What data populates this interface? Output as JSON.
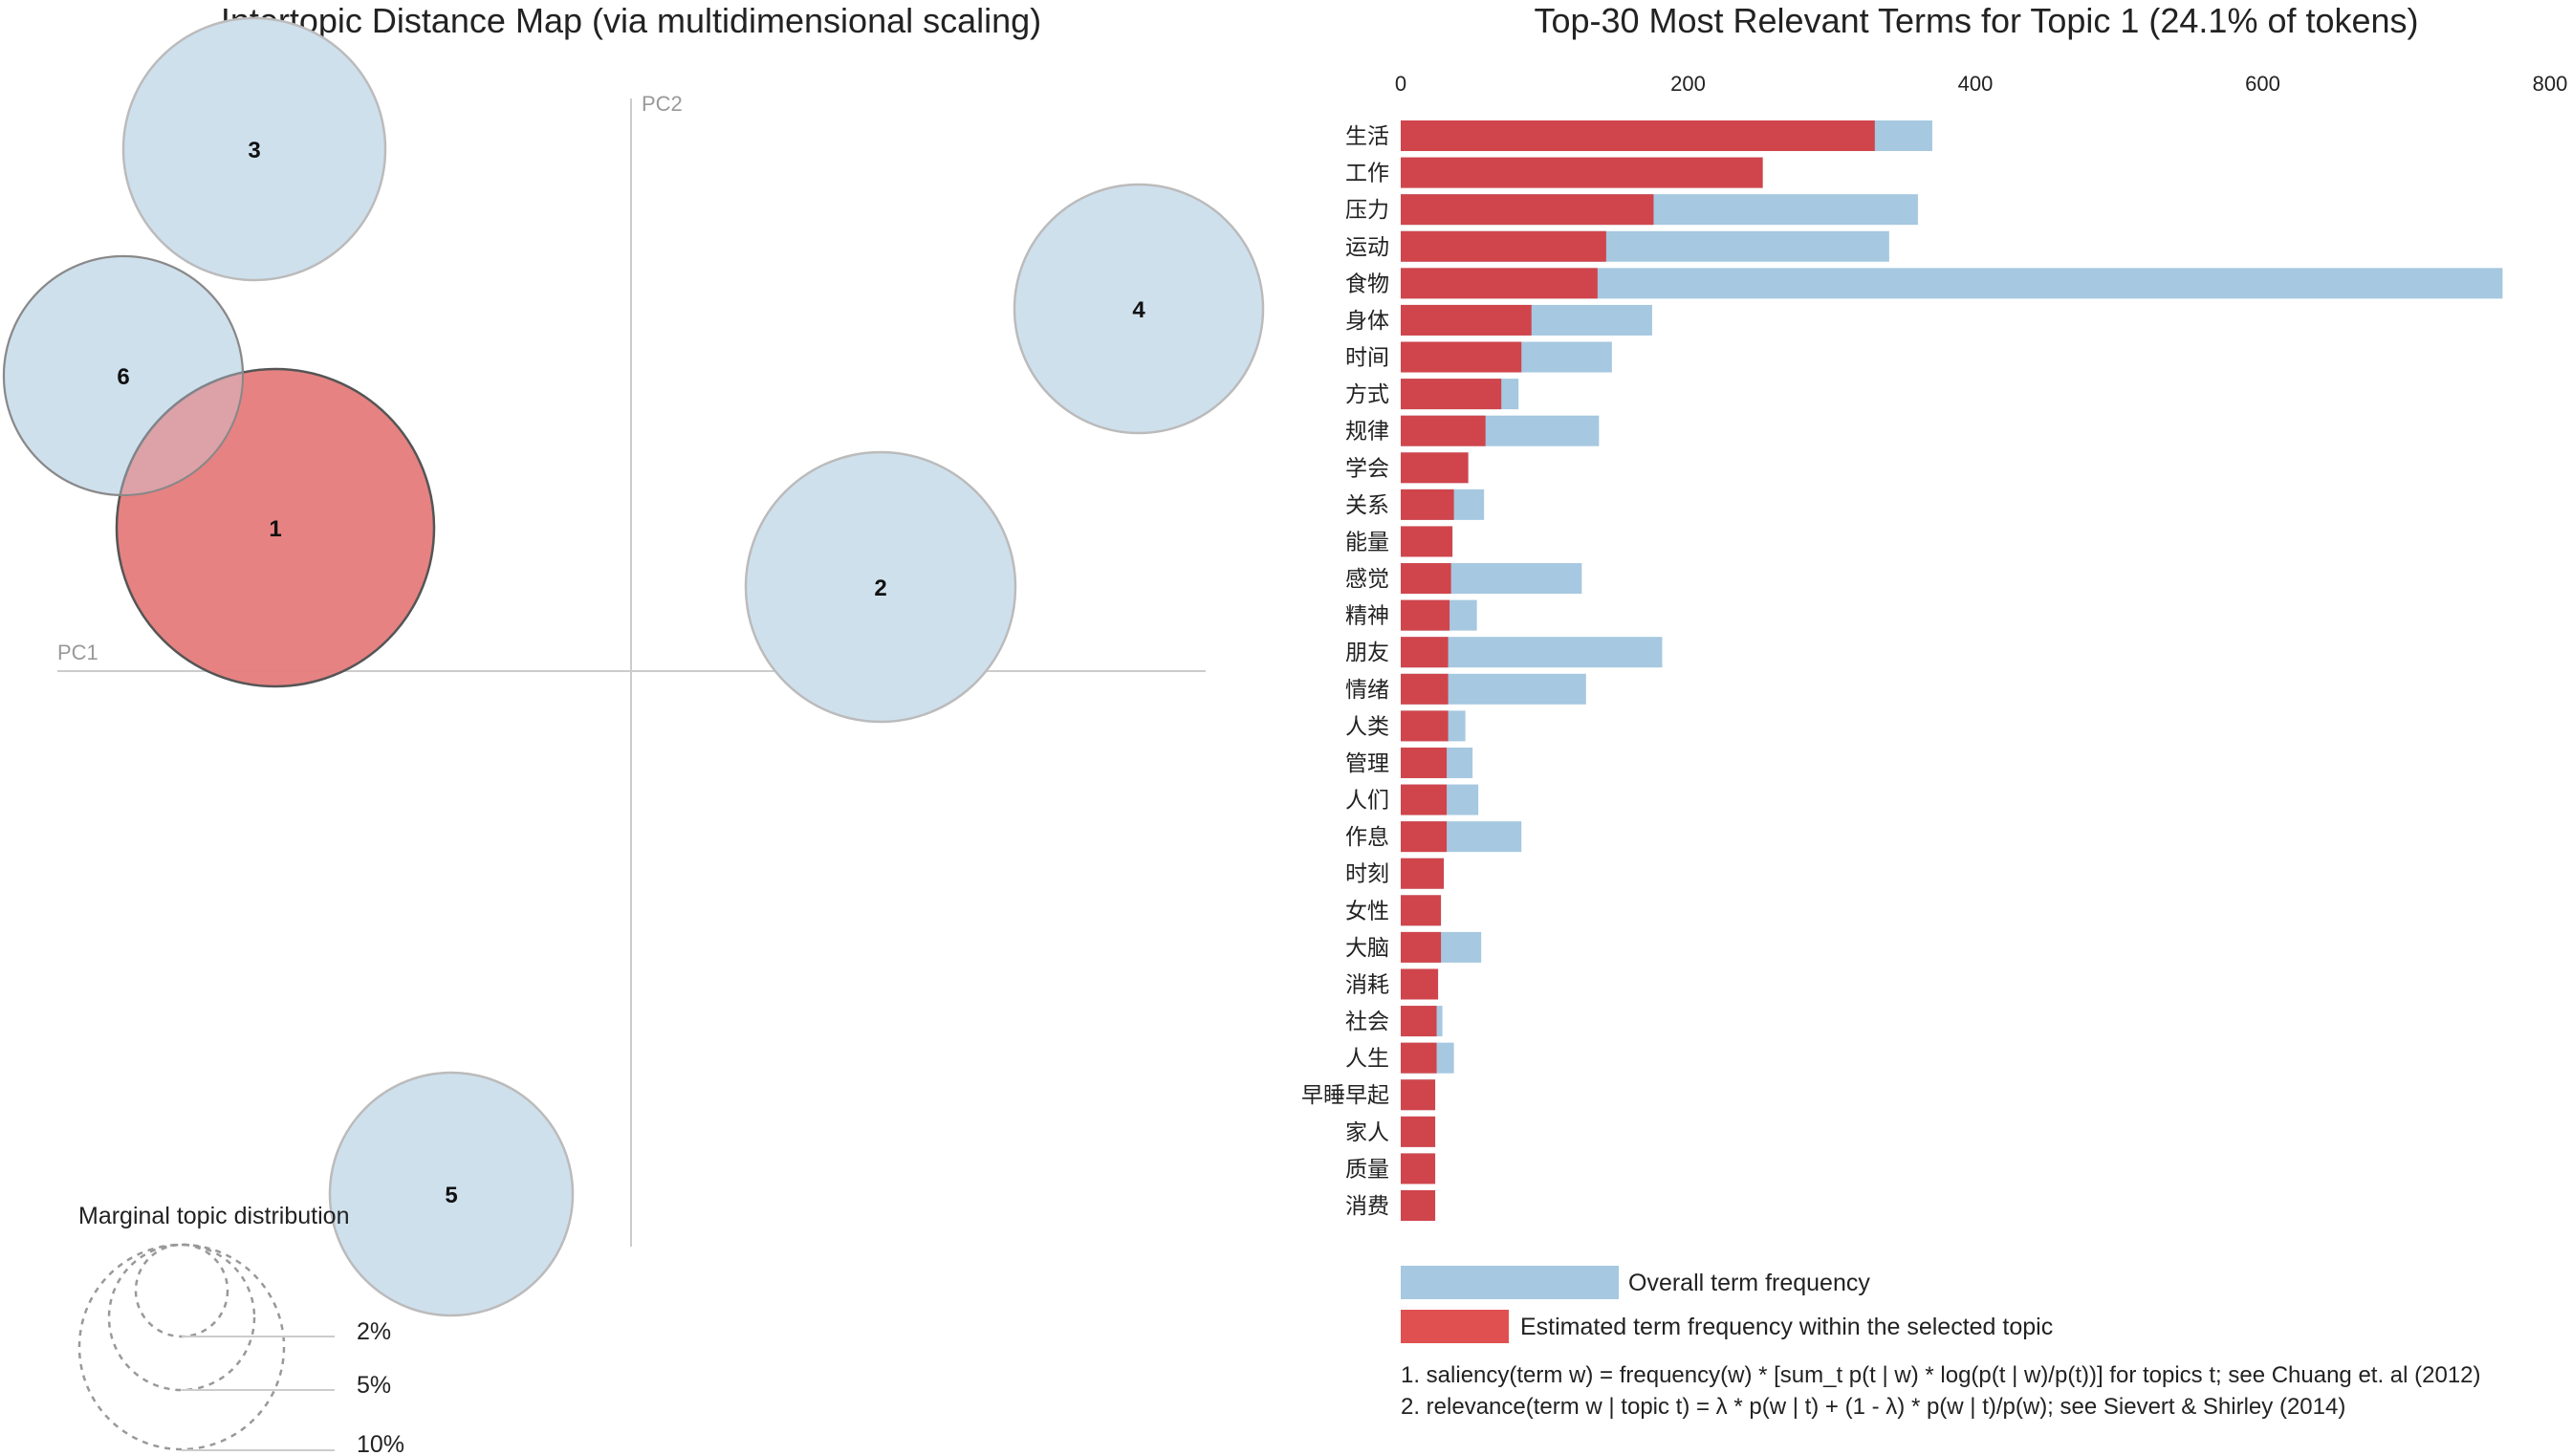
{
  "colors": {
    "overall_bar": "#a6c8e0",
    "topic_bar": "#d0454c",
    "legend_topic_bar": "#e05050",
    "circle_fill": "#cfe0ed",
    "selected_circle_fill": "#e57b7b",
    "selected_label": "#8b1010"
  },
  "left": {
    "title": "Intertopic Distance Map (via multidimensional scaling)",
    "pc1_label": "PC1",
    "pc2_label": "PC2",
    "selected_topic": "1",
    "marginal_title": "Marginal topic distribution",
    "marginal_levels": [
      "2%",
      "5%",
      "10%"
    ]
  },
  "chart_data": [
    {
      "type": "scatter",
      "title": "Intertopic Distance Map (via multidimensional scaling)",
      "xlabel": "PC1",
      "ylabel": "PC2",
      "topics": [
        "1",
        "2",
        "3",
        "4",
        "5",
        "6"
      ],
      "selected": "1",
      "size_legend": [
        "2%",
        "5%",
        "10%"
      ]
    },
    {
      "type": "bar",
      "title": "Top-30 Most Relevant Terms for Topic 1 (24.1% of tokens)",
      "xlim": [
        0,
        800
      ],
      "xticks": [
        "0",
        "200",
        "400",
        "600",
        "800"
      ],
      "categories": [
        "生活",
        "工作",
        "压力",
        "运动",
        "食物",
        "身体",
        "时间",
        "方式",
        "规律",
        "学会",
        "关系",
        "能量",
        "感觉",
        "精神",
        "朋友",
        "情绪",
        "人类",
        "管理",
        "人们",
        "作息",
        "时刻",
        "女性",
        "大脑",
        "消耗",
        "社会",
        "人生",
        "早睡早起",
        "家人",
        "质量",
        "消费"
      ],
      "series": [
        {
          "name": "Overall term frequency",
          "values": [
            370,
            252,
            360,
            340,
            767,
            175,
            147,
            82,
            138,
            47,
            58,
            36,
            126,
            53,
            182,
            129,
            45,
            50,
            54,
            84,
            30,
            28,
            56,
            26,
            29,
            37,
            24,
            24,
            24,
            24
          ]
        },
        {
          "name": "Estimated term frequency within the selected topic",
          "values": [
            330,
            252,
            176,
            143,
            137,
            91,
            84,
            70,
            59,
            47,
            37,
            36,
            35,
            34,
            33,
            33,
            33,
            32,
            32,
            32,
            30,
            28,
            28,
            26,
            25,
            25,
            24,
            24,
            24,
            24
          ]
        }
      ],
      "legend": [
        "Overall term frequency",
        "Estimated term frequency within the selected topic"
      ],
      "notes": [
        "1. saliency(term w) = frequency(w) * [sum_t p(t | w) * log(p(t | w)/p(t))] for topics t; see Chuang et. al (2012)",
        "2. relevance(term w | topic t) = λ * p(w | t) + (1 - λ) * p(w | t)/p(w); see Sievert & Shirley (2014)"
      ]
    }
  ]
}
